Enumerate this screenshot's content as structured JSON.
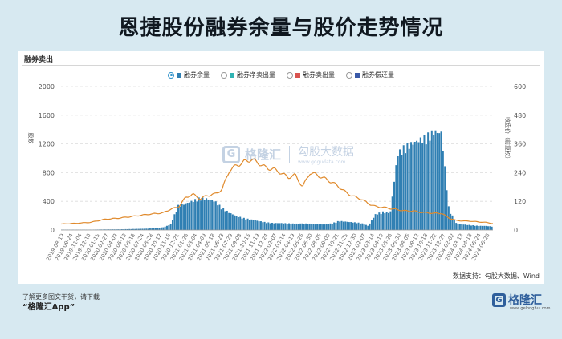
{
  "title": "恩捷股份融券余量与股价走势情况",
  "section_label": "融券卖出",
  "legend": [
    {
      "label": "融券余量",
      "color": "#2f7fb3",
      "selected": true
    },
    {
      "label": "融券净卖出量",
      "color": "#2fb3b3",
      "selected": false
    },
    {
      "label": "融券卖出量",
      "color": "#d9534f",
      "selected": false
    },
    {
      "label": "融券偿还量",
      "color": "#3a5aa8",
      "selected": false
    }
  ],
  "watermark": {
    "brand": "格隆汇",
    "partner": "勾股大数据",
    "partner_url": "www.gogudata.com"
  },
  "source": "数据支持：勾股大数据、Wind",
  "footer": {
    "line1": "了解更多图文干货，请下载",
    "app": "“格隆汇App”",
    "logo": "格隆汇",
    "logo_url": "www.gelonghui.com"
  },
  "chart_data": {
    "type": "bar",
    "y_left": {
      "label": "股数",
      "ylim": [
        0,
        2000
      ],
      "ticks": [
        0,
        400,
        800,
        1200,
        1600,
        2000
      ]
    },
    "y_right": {
      "label": "收盘价（前复权）",
      "ylim": [
        0,
        600
      ],
      "ticks": [
        0,
        120,
        240,
        360,
        480,
        600
      ]
    },
    "x_tick_labels": [
      "2019-08-19",
      "2019-09-24",
      "2019-11-04",
      "2019-12-10",
      "2020-01-15",
      "2020-02-27",
      "2020-04-02",
      "2020-05-13",
      "2020-06-18",
      "2020-07-24",
      "2020-08-28",
      "2020-10-12",
      "2020-11-16",
      "2020-12-21",
      "2021-01-26",
      "2021-03-04",
      "2021-04-09",
      "2021-05-18",
      "2021-06-23",
      "2021-07-29",
      "2021-09-03",
      "2021-10-15",
      "2021-11-19",
      "2021-12-24",
      "2022-02-07",
      "2022-03-14",
      "2022-04-19",
      "2022-05-26",
      "2022-06-30",
      "2022-08-05",
      "2022-09-09",
      "2022-10-21",
      "2022-11-25",
      "2022-12-30",
      "2023-02-07",
      "2023-03-14",
      "2023-04-19",
      "2023-05-26",
      "2023-06-30",
      "2023-08-05",
      "2023-09-12",
      "2023-10-18",
      "2023-11-22",
      "2023-12-27",
      "2024-02-02",
      "2024-03-13",
      "2024-04-18",
      "2024-05-24",
      "2024-06-26"
    ],
    "series": [
      {
        "name": "融券余量",
        "axis": "left",
        "color": "#2f7fb3",
        "x": [
          "2019-08",
          "2019-10",
          "2019-12",
          "2020-02",
          "2020-04",
          "2020-06",
          "2020-08",
          "2020-10",
          "2020-11",
          "2020-12",
          "2021-01",
          "2021-02",
          "2021-03",
          "2021-04",
          "2021-05",
          "2021-06",
          "2021-07",
          "2021-08",
          "2021-09",
          "2021-10",
          "2021-11",
          "2021-12",
          "2022-01",
          "2022-02",
          "2022-03",
          "2022-04",
          "2022-05",
          "2022-06",
          "2022-07",
          "2022-08",
          "2022-09",
          "2022-10",
          "2022-11",
          "2022-12",
          "2023-01",
          "2023-02",
          "2023-03",
          "2023-04",
          "2023-05",
          "2023-06",
          "2023-07",
          "2023-08",
          "2023-09",
          "2023-10",
          "2023-11",
          "2023-12",
          "2024-01",
          "2024-02",
          "2024-03",
          "2024-04",
          "2024-05",
          "2024-06",
          "2024-07"
        ],
        "values": [
          5,
          5,
          5,
          8,
          10,
          15,
          20,
          40,
          80,
          350,
          380,
          420,
          460,
          450,
          420,
          320,
          250,
          200,
          170,
          150,
          130,
          110,
          100,
          100,
          95,
          90,
          95,
          90,
          85,
          80,
          95,
          130,
          120,
          110,
          100,
          60,
          230,
          260,
          250,
          1100,
          1200,
          1250,
          1300,
          1350,
          1420,
          1400,
          300,
          100,
          80,
          70,
          60,
          60,
          50
        ]
      },
      {
        "name": "收盘价（前复权）",
        "axis": "right",
        "color": "#e08a2c",
        "x": [
          "2019-08",
          "2019-10",
          "2019-12",
          "2020-02",
          "2020-04",
          "2020-06",
          "2020-08",
          "2020-10",
          "2020-11",
          "2020-12",
          "2021-01",
          "2021-02",
          "2021-03",
          "2021-04",
          "2021-05",
          "2021-06",
          "2021-07",
          "2021-08",
          "2021-09",
          "2021-10",
          "2021-11",
          "2021-12",
          "2022-01",
          "2022-02",
          "2022-03",
          "2022-04",
          "2022-05",
          "2022-06",
          "2022-07",
          "2022-08",
          "2022-09",
          "2022-10",
          "2022-11",
          "2022-12",
          "2023-01",
          "2023-02",
          "2023-03",
          "2023-04",
          "2023-05",
          "2023-06",
          "2023-07",
          "2023-08",
          "2023-09",
          "2023-10",
          "2023-11",
          "2023-12",
          "2024-01",
          "2024-02",
          "2024-03",
          "2024-04",
          "2024-05",
          "2024-06",
          "2024-07"
        ],
        "values": [
          25,
          28,
          32,
          45,
          50,
          58,
          66,
          72,
          88,
          95,
          135,
          150,
          130,
          145,
          150,
          170,
          250,
          270,
          285,
          295,
          280,
          260,
          255,
          240,
          220,
          230,
          180,
          240,
          230,
          215,
          200,
          180,
          155,
          140,
          130,
          110,
          98,
          95,
          90,
          85,
          80,
          80,
          75,
          72,
          70,
          70,
          50,
          40,
          38,
          37,
          34,
          32,
          27
        ]
      }
    ]
  }
}
